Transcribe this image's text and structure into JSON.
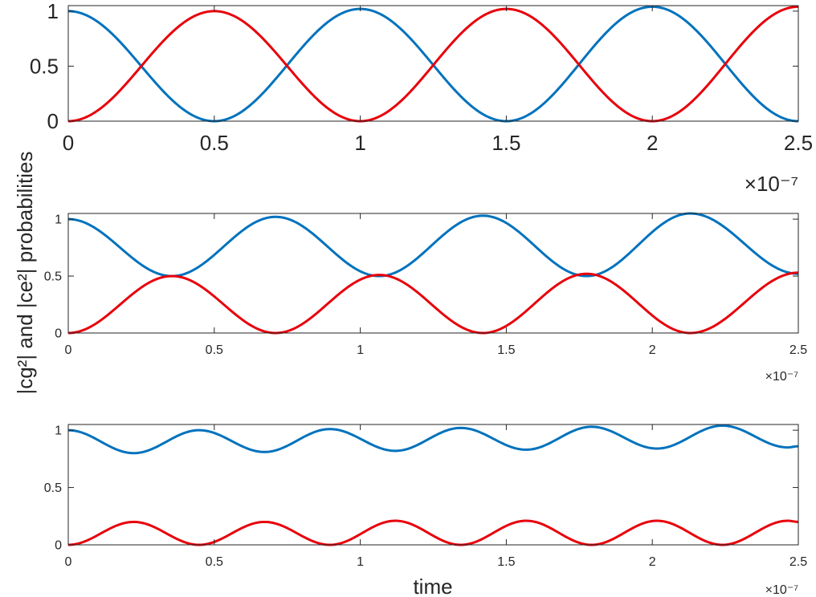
{
  "figure": {
    "ylabel": "|cg²| and |ce²| probabilities",
    "xlabel": "time"
  },
  "colors": {
    "cg": "#0072BD",
    "ce": "#E8000B"
  },
  "chart_data": [
    {
      "type": "line",
      "xlim": [
        0,
        2.5e-07
      ],
      "ylim": [
        0,
        1.05
      ],
      "x_ticks": [
        0,
        0.5,
        1,
        1.5,
        2,
        2.5
      ],
      "x_tick_labels": [
        "0",
        "0.5",
        "1",
        "1.5",
        "2",
        "2.5"
      ],
      "y_ticks": [
        0,
        0.5,
        1
      ],
      "y_tick_labels": [
        "0",
        "0.5",
        "1"
      ],
      "x_exponent": "×10⁻⁷",
      "grid": false,
      "series": [
        {
          "values_x": [
            0,
            5e-08,
            1e-07,
            1.5e-07,
            2e-07,
            2.5e-07
          ],
          "values_y": [
            1,
            0,
            1.02,
            0,
            1.04,
            0
          ]
        },
        {
          "values_x": [
            0,
            5e-08,
            1e-07,
            1.5e-07,
            2e-07,
            2.5e-07
          ],
          "values_y": [
            0,
            1,
            0,
            1.02,
            0,
            1.04
          ]
        }
      ]
    },
    {
      "type": "line",
      "xlim": [
        0,
        2.5e-07
      ],
      "ylim": [
        0,
        1.05
      ],
      "x_ticks": [
        0,
        0.5,
        1,
        1.5,
        2,
        2.5
      ],
      "x_tick_labels": [
        "0",
        "0.5",
        "1",
        "1.5",
        "2",
        "2.5"
      ],
      "y_ticks": [
        0,
        0.5,
        1
      ],
      "y_tick_labels": [
        "0",
        "0.5",
        "1"
      ],
      "x_exponent": "×10⁻⁷",
      "grid": false,
      "series": [
        {
          "values_x": [
            0,
            3.55e-08,
            7.1e-08,
            1.065e-07,
            1.42e-07,
            1.775e-07,
            2.13e-07,
            2.5e-07
          ],
          "values_y": [
            1,
            0.5,
            1.02,
            0.5,
            1.03,
            0.5,
            1.05,
            0.52
          ]
        },
        {
          "values_x": [
            0,
            3.55e-08,
            7.1e-08,
            1.065e-07,
            1.42e-07,
            1.775e-07,
            2.13e-07,
            2.5e-07
          ],
          "values_y": [
            0,
            0.5,
            0,
            0.51,
            0,
            0.52,
            0,
            0.53
          ]
        }
      ]
    },
    {
      "type": "line",
      "xlim": [
        0,
        2.5e-07
      ],
      "ylim": [
        0,
        1.05
      ],
      "x_ticks": [
        0,
        0.5,
        1,
        1.5,
        2,
        2.5
      ],
      "x_tick_labels": [
        "0",
        "0.5",
        "1",
        "1.5",
        "2",
        "2.5"
      ],
      "y_ticks": [
        0,
        0.5,
        1
      ],
      "y_tick_labels": [
        "0",
        "0.5",
        "1"
      ],
      "x_exponent": "×10⁻⁷",
      "grid": false,
      "series": [
        {
          "values_x": [
            0,
            2.24e-08,
            4.48e-08,
            6.72e-08,
            8.96e-08,
            1.12e-07,
            1.344e-07,
            1.568e-07,
            1.792e-07,
            2.016e-07,
            2.24e-07,
            2.464e-07,
            2.5e-07
          ],
          "values_y": [
            1,
            0.8,
            1.0,
            0.81,
            1.01,
            0.82,
            1.02,
            0.83,
            1.03,
            0.84,
            1.04,
            0.85,
            0.86
          ]
        },
        {
          "values_x": [
            0,
            2.24e-08,
            4.48e-08,
            6.72e-08,
            8.96e-08,
            1.12e-07,
            1.344e-07,
            1.568e-07,
            1.792e-07,
            2.016e-07,
            2.24e-07,
            2.464e-07,
            2.5e-07
          ],
          "values_y": [
            0,
            0.2,
            0,
            0.2,
            0,
            0.21,
            0,
            0.21,
            0,
            0.21,
            0,
            0.21,
            0.2
          ]
        }
      ]
    }
  ]
}
